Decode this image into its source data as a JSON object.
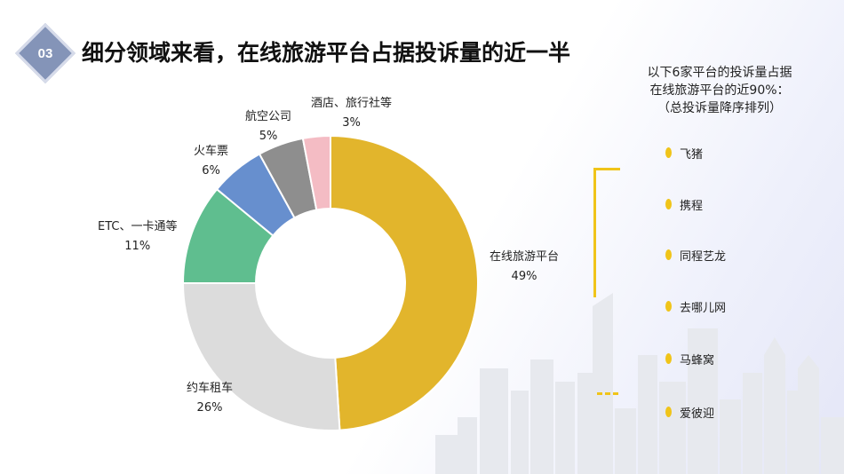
{
  "slide": {
    "badge_number": "03",
    "title": "细分领域来看，在线旅游平台占据投诉量的近一半"
  },
  "note": {
    "line1": "以下6家平台的投诉量占据",
    "line2": "在线旅游平台的近90%：",
    "line3": "（总投诉量降序排列）"
  },
  "platforms": [
    "飞猪",
    "携程",
    "同程艺龙",
    "去哪儿网",
    "马蜂窝",
    "爱彼迎"
  ],
  "colors": {
    "accent": "#f0c419",
    "badge": "#8494b8"
  },
  "chart_data": {
    "type": "pie",
    "donut": true,
    "categories": [
      "在线旅游平台",
      "约车租车",
      "ETC、一卡通等",
      "火车票",
      "航空公司",
      "酒店、旅行社等"
    ],
    "values": [
      49,
      26,
      11,
      6,
      5,
      3
    ],
    "value_labels": [
      "49%",
      "26%",
      "11%",
      "6%",
      "5%",
      "3%"
    ],
    "colors": [
      "#e2b52c",
      "#dcdcdc",
      "#5fbe8f",
      "#678fce",
      "#8e8e8e",
      "#f4bcc4"
    ]
  }
}
